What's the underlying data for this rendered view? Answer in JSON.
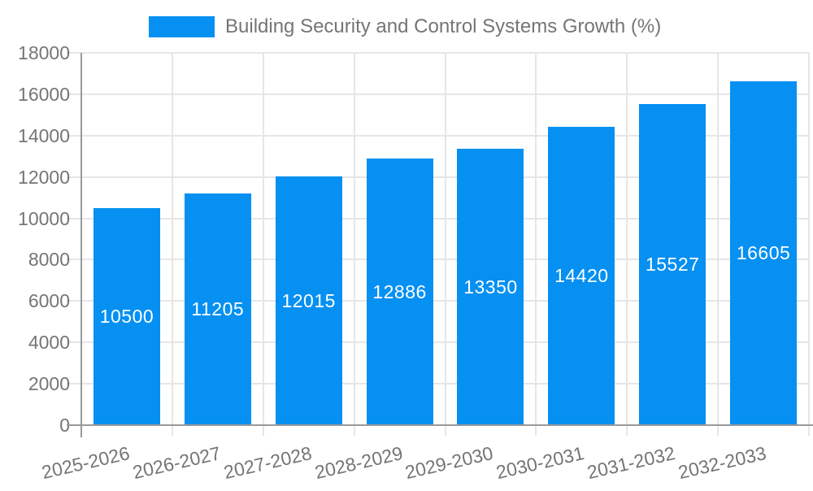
{
  "chart_data": {
    "type": "bar",
    "title": "Building Security and Control Systems Growth (%)",
    "legend": {
      "position": "top",
      "label": "Building Security and Control Systems Growth (%)"
    },
    "categories": [
      "2025-2026",
      "2026-2027",
      "2027-2028",
      "2028-2029",
      "2029-2030",
      "2030-2031",
      "2031-2032",
      "2032-2033"
    ],
    "values": [
      10500,
      11205,
      12015,
      12886,
      13350,
      14420,
      15527,
      16605
    ],
    "xlabel": "",
    "ylabel": "",
    "ylim": [
      0,
      18000
    ],
    "ytick_interval": 2000,
    "yticks": [
      0,
      2000,
      4000,
      6000,
      8000,
      10000,
      12000,
      14000,
      16000,
      18000
    ],
    "grid": "horizontal and vertical, light gray",
    "data_labels": "white numbers centered inside bars",
    "colors": {
      "bar": "#0590F2",
      "gridline": "#E6E6E6",
      "axis_line": "#9A9A9A",
      "axis_text": "#757575",
      "data_label": "#FFFFFF",
      "background": "#FFFFFF"
    }
  }
}
